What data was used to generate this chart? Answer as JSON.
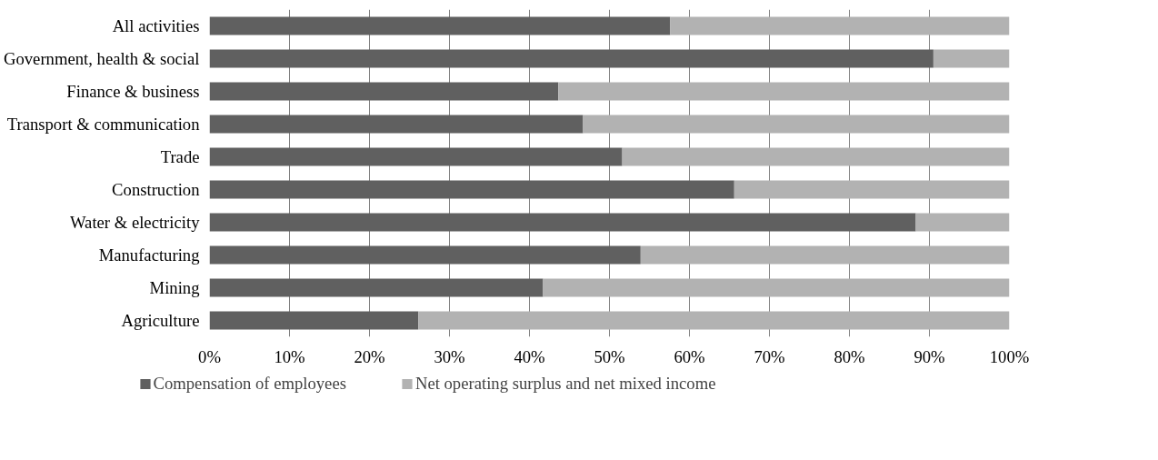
{
  "chart_data": {
    "type": "bar",
    "orientation": "horizontal",
    "stacked": true,
    "categories": [
      "All activities",
      "Government, health & social",
      "Finance & business",
      "Transport & communication",
      "Trade",
      "Construction",
      "Water & electricity",
      "Manufacturing",
      "Mining",
      "Agriculture"
    ],
    "series": [
      {
        "name": "Compensation of employees",
        "color": "#606060",
        "values": [
          57.6,
          90.5,
          43.6,
          46.7,
          51.6,
          65.6,
          88.3,
          53.9,
          41.7,
          26.1
        ]
      },
      {
        "name": "Net operating surplus and net mixed income",
        "color": "#b2b2b2",
        "values": [
          42.4,
          9.5,
          56.4,
          53.3,
          48.4,
          34.4,
          11.7,
          46.1,
          58.3,
          73.9
        ]
      }
    ],
    "xlim": [
      0,
      100
    ],
    "xticks": [
      {
        "value": 0,
        "label": "0%"
      },
      {
        "value": 10,
        "label": "10%"
      },
      {
        "value": 20,
        "label": "20%"
      },
      {
        "value": 30,
        "label": "30%"
      },
      {
        "value": 40,
        "label": "40%"
      },
      {
        "value": 50,
        "label": "50%"
      },
      {
        "value": 60,
        "label": "60%"
      },
      {
        "value": 70,
        "label": "70%"
      },
      {
        "value": 80,
        "label": "80%"
      },
      {
        "value": 90,
        "label": "90%"
      },
      {
        "value": 100,
        "label": "100%"
      }
    ],
    "grid": "x",
    "legend": "bottom"
  }
}
